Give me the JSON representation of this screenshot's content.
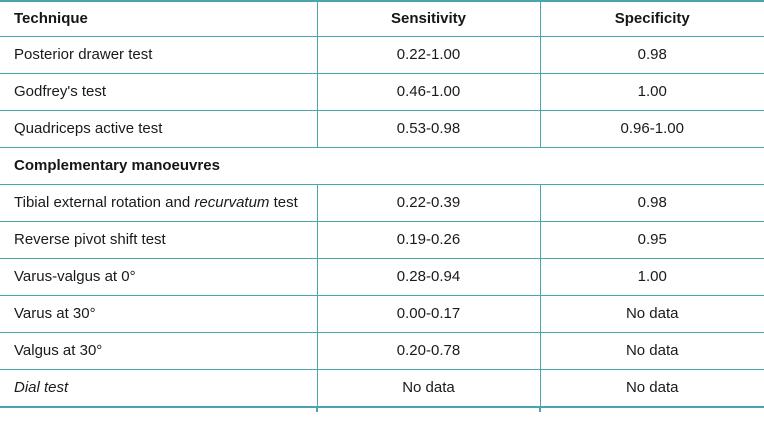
{
  "table": {
    "accent_color": "#4aa5af",
    "text_color": "#1a1a1a",
    "columns": [
      {
        "label": "Technique",
        "align": "left"
      },
      {
        "label": "Sensitivity",
        "align": "center"
      },
      {
        "label": "Specificity",
        "align": "center"
      }
    ],
    "rows": [
      {
        "type": "data",
        "technique": [
          {
            "text": "Posterior drawer test"
          }
        ],
        "sensitivity": "0.22-1.00",
        "specificity": "0.98"
      },
      {
        "type": "data",
        "technique": [
          {
            "text": "Godfrey's test"
          }
        ],
        "sensitivity": "0.46-1.00",
        "specificity": "1.00"
      },
      {
        "type": "data",
        "technique": [
          {
            "text": "Quadriceps active test"
          }
        ],
        "sensitivity": "0.53-0.98",
        "specificity": "0.96-1.00"
      },
      {
        "type": "section",
        "label": "Complementary manoeuvres"
      },
      {
        "type": "data",
        "technique": [
          {
            "text": "Tibial external rotation and "
          },
          {
            "text": "recurvatum",
            "italic": true
          },
          {
            "text": " test"
          }
        ],
        "sensitivity": "0.22-0.39",
        "specificity": "0.98"
      },
      {
        "type": "data",
        "technique": [
          {
            "text": "Reverse pivot shift test"
          }
        ],
        "sensitivity": "0.19-0.26",
        "specificity": "0.95"
      },
      {
        "type": "data",
        "technique": [
          {
            "text": "Varus-valgus at 0°"
          }
        ],
        "sensitivity": "0.28-0.94",
        "specificity": "1.00"
      },
      {
        "type": "data",
        "technique": [
          {
            "text": "Varus at 30°"
          }
        ],
        "sensitivity": "0.00-0.17",
        "specificity": "No data"
      },
      {
        "type": "data",
        "technique": [
          {
            "text": "Valgus at 30°"
          }
        ],
        "sensitivity": "0.20-0.78",
        "specificity": "No data"
      },
      {
        "type": "data",
        "technique": [
          {
            "text": "Dial test",
            "italic": true
          }
        ],
        "sensitivity": "No data",
        "specificity": "No data"
      }
    ]
  }
}
